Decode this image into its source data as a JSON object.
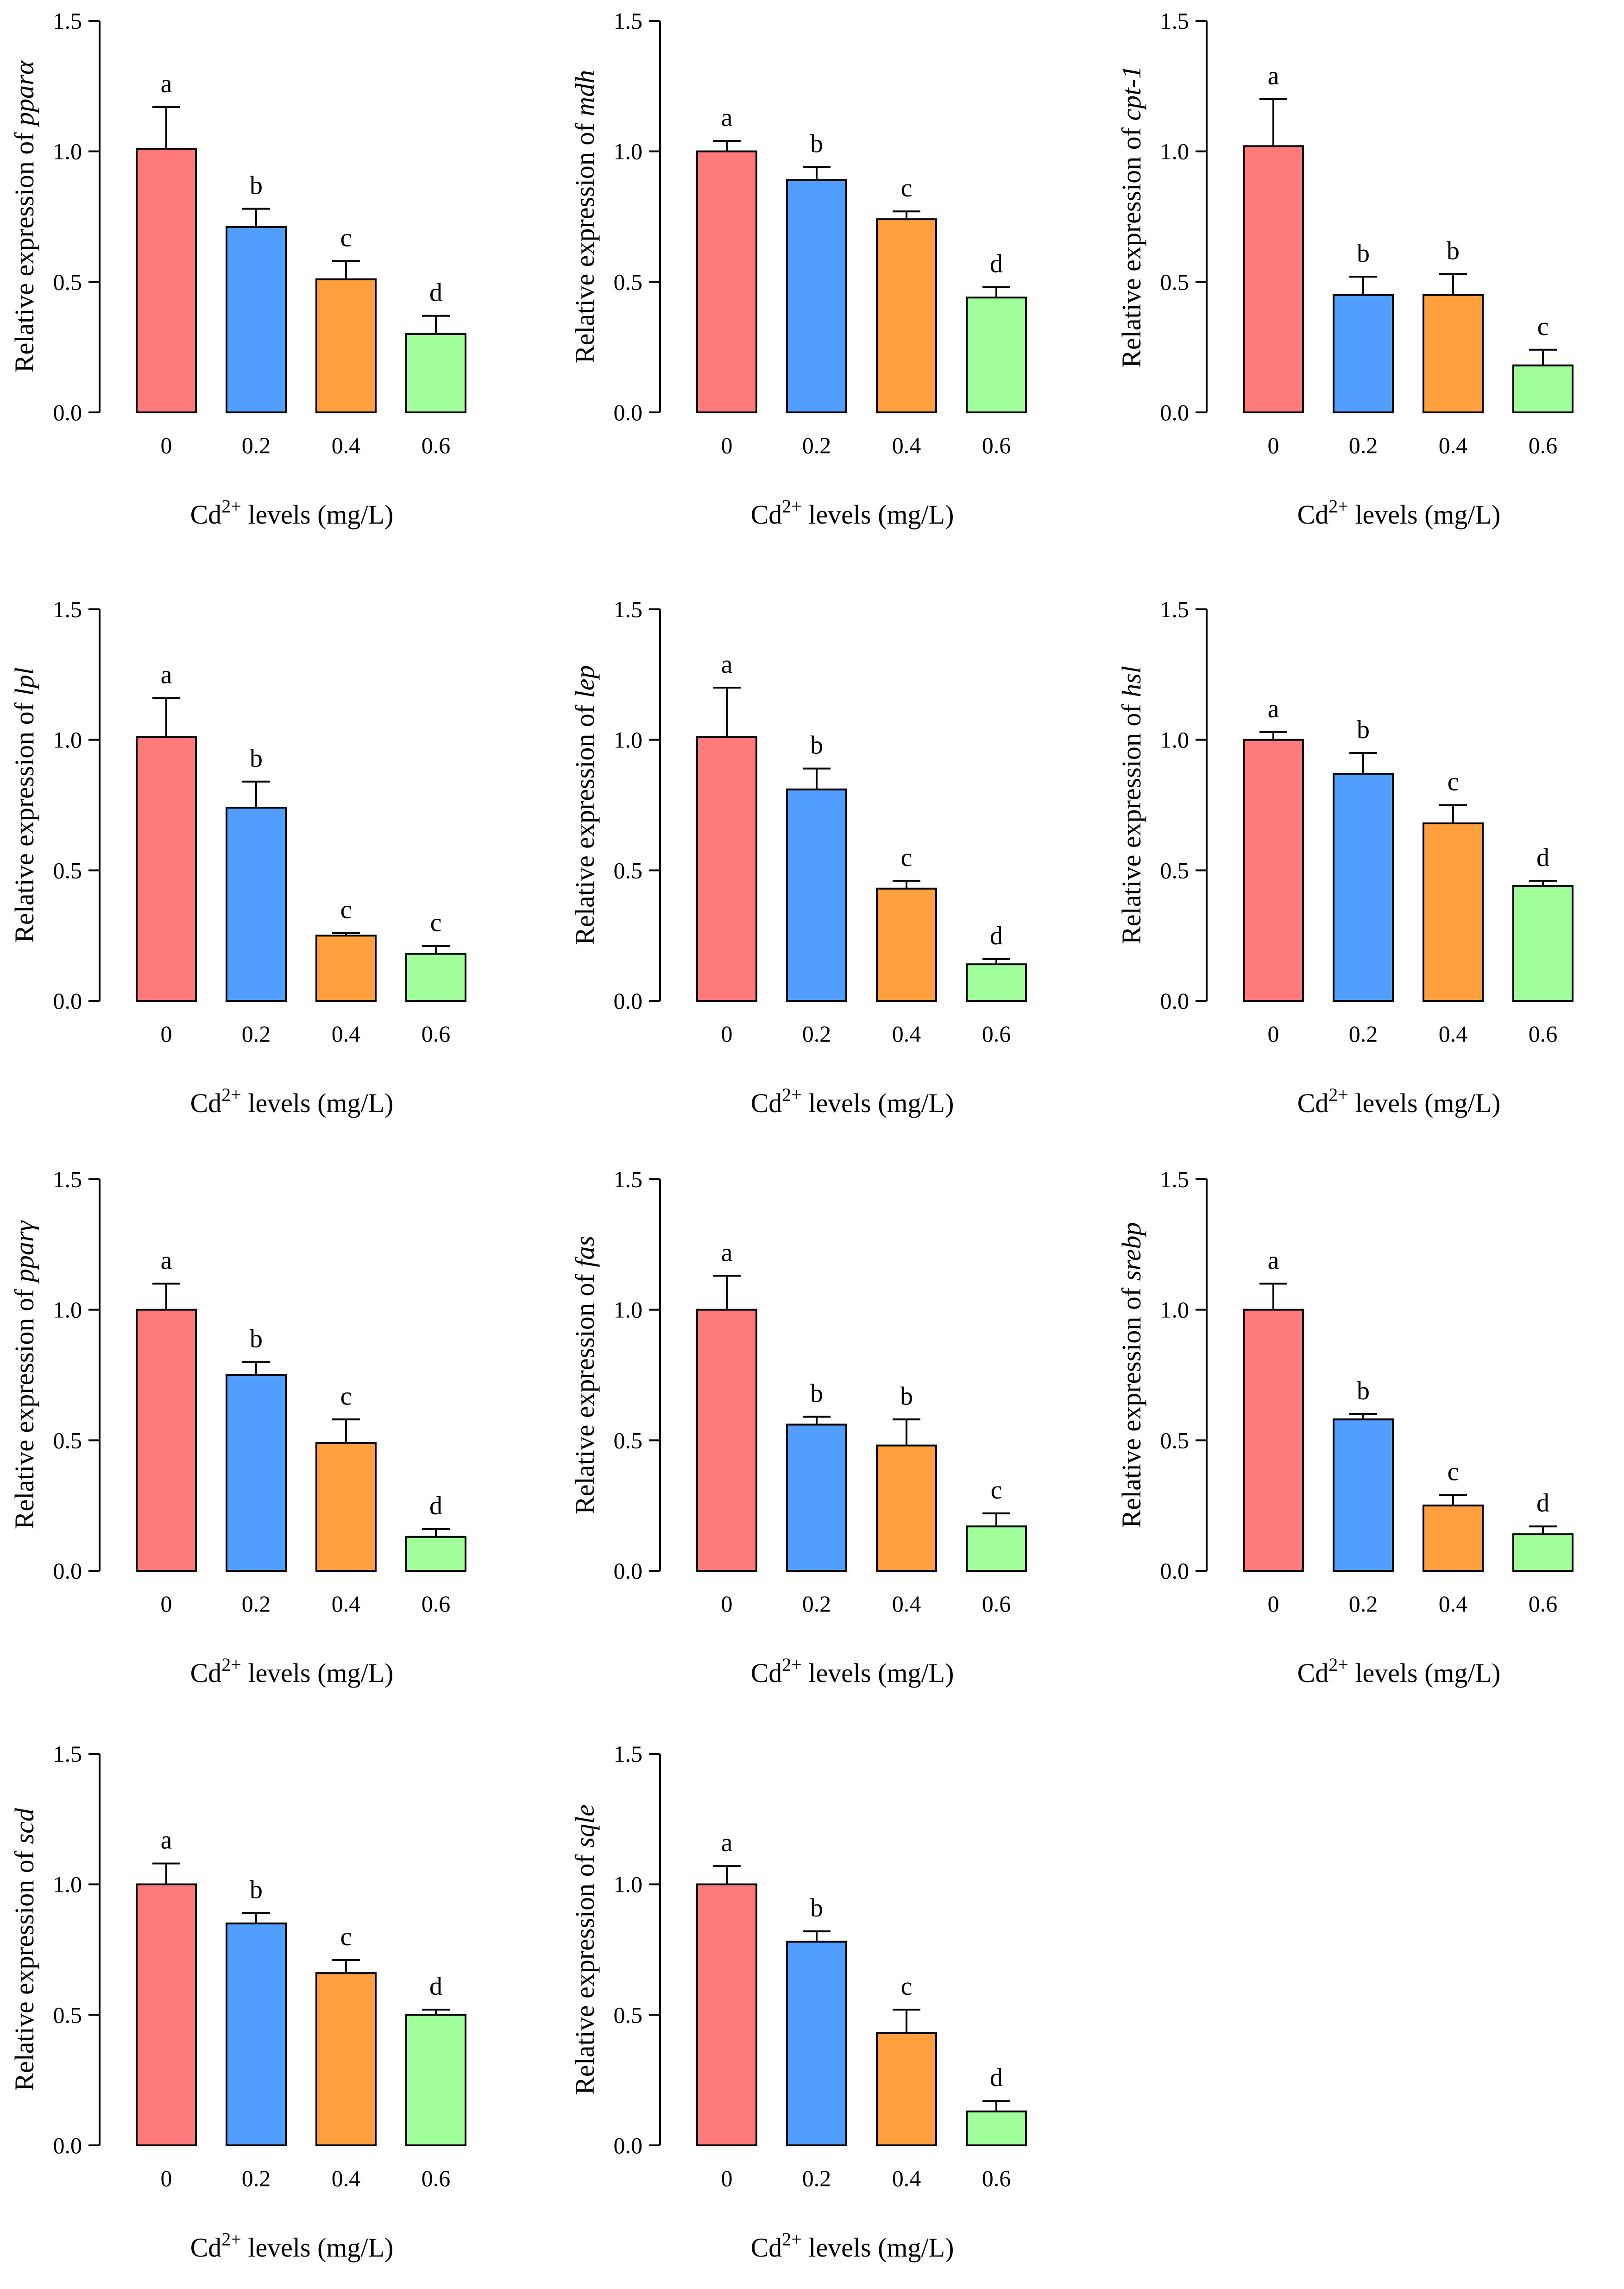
{
  "figure": {
    "x_axis_title": {
      "prefix": "Cd",
      "superscript": "2+",
      "suffix": " levels (mg/L)"
    },
    "y_axis_prefix": "Relative expression of ",
    "colors": [
      "#FF7B7B",
      "#529EFF",
      "#FF9F3E",
      "#A0FF9B"
    ]
  },
  "chart_data": [
    {
      "type": "bar",
      "gene": "pparα",
      "categories": [
        "0",
        "0.2",
        "0.4",
        "0.6"
      ],
      "values": [
        1.01,
        0.71,
        0.51,
        0.3
      ],
      "errors": [
        0.16,
        0.07,
        0.07,
        0.07
      ],
      "letters": [
        "a",
        "b",
        "c",
        "d"
      ],
      "ylim": [
        0,
        1.5
      ],
      "yticks": [
        "0.0",
        "0.5",
        "1.0",
        "1.5"
      ]
    },
    {
      "type": "bar",
      "gene": "mdh",
      "categories": [
        "0",
        "0.2",
        "0.4",
        "0.6"
      ],
      "values": [
        1.0,
        0.89,
        0.74,
        0.44
      ],
      "errors": [
        0.04,
        0.05,
        0.03,
        0.04
      ],
      "letters": [
        "a",
        "b",
        "c",
        "d"
      ],
      "ylim": [
        0,
        1.5
      ],
      "yticks": [
        "0.0",
        "0.5",
        "1.0",
        "1.5"
      ]
    },
    {
      "type": "bar",
      "gene": "cpt-1",
      "categories": [
        "0",
        "0.2",
        "0.4",
        "0.6"
      ],
      "values": [
        1.02,
        0.45,
        0.45,
        0.18
      ],
      "errors": [
        0.18,
        0.07,
        0.08,
        0.06
      ],
      "letters": [
        "a",
        "b",
        "b",
        "c"
      ],
      "ylim": [
        0,
        1.5
      ],
      "yticks": [
        "0.0",
        "0.5",
        "1.0",
        "1.5"
      ]
    },
    {
      "type": "bar",
      "gene": "lpl",
      "categories": [
        "0",
        "0.2",
        "0.4",
        "0.6"
      ],
      "values": [
        1.01,
        0.74,
        0.25,
        0.18
      ],
      "errors": [
        0.15,
        0.1,
        0.01,
        0.03
      ],
      "letters": [
        "a",
        "b",
        "c",
        "c"
      ],
      "ylim": [
        0,
        1.5
      ],
      "yticks": [
        "0.0",
        "0.5",
        "1.0",
        "1.5"
      ]
    },
    {
      "type": "bar",
      "gene": "lep",
      "categories": [
        "0",
        "0.2",
        "0.4",
        "0.6"
      ],
      "values": [
        1.01,
        0.81,
        0.43,
        0.14
      ],
      "errors": [
        0.19,
        0.08,
        0.03,
        0.02
      ],
      "letters": [
        "a",
        "b",
        "c",
        "d"
      ],
      "ylim": [
        0,
        1.5
      ],
      "yticks": [
        "0.0",
        "0.5",
        "1.0",
        "1.5"
      ]
    },
    {
      "type": "bar",
      "gene": "hsl",
      "categories": [
        "0",
        "0.2",
        "0.4",
        "0.6"
      ],
      "values": [
        1.0,
        0.87,
        0.68,
        0.44
      ],
      "errors": [
        0.03,
        0.08,
        0.07,
        0.02
      ],
      "letters": [
        "a",
        "b",
        "c",
        "d"
      ],
      "ylim": [
        0,
        1.5
      ],
      "yticks": [
        "0.0",
        "0.5",
        "1.0",
        "1.5"
      ]
    },
    {
      "type": "bar",
      "gene": "pparγ",
      "categories": [
        "0",
        "0.2",
        "0.4",
        "0.6"
      ],
      "values": [
        1.0,
        0.75,
        0.49,
        0.13
      ],
      "errors": [
        0.1,
        0.05,
        0.09,
        0.03
      ],
      "letters": [
        "a",
        "b",
        "c",
        "d"
      ],
      "ylim": [
        0,
        1.5
      ],
      "yticks": [
        "0.0",
        "0.5",
        "1.0",
        "1.5"
      ]
    },
    {
      "type": "bar",
      "gene": "fas",
      "categories": [
        "0",
        "0.2",
        "0.4",
        "0.6"
      ],
      "values": [
        1.0,
        0.56,
        0.48,
        0.17
      ],
      "errors": [
        0.13,
        0.03,
        0.1,
        0.05
      ],
      "letters": [
        "a",
        "b",
        "b",
        "c"
      ],
      "ylim": [
        0,
        1.5
      ],
      "yticks": [
        "0.0",
        "0.5",
        "1.0",
        "1.5"
      ]
    },
    {
      "type": "bar",
      "gene": "srebp",
      "categories": [
        "0",
        "0.2",
        "0.4",
        "0.6"
      ],
      "values": [
        1.0,
        0.58,
        0.25,
        0.14
      ],
      "errors": [
        0.1,
        0.02,
        0.04,
        0.03
      ],
      "letters": [
        "a",
        "b",
        "c",
        "d"
      ],
      "ylim": [
        0,
        1.5
      ],
      "yticks": [
        "0.0",
        "0.5",
        "1.0",
        "1.5"
      ]
    },
    {
      "type": "bar",
      "gene": "scd",
      "categories": [
        "0",
        "0.2",
        "0.4",
        "0.6"
      ],
      "values": [
        1.0,
        0.85,
        0.66,
        0.5
      ],
      "errors": [
        0.08,
        0.04,
        0.05,
        0.02
      ],
      "letters": [
        "a",
        "b",
        "c",
        "d"
      ],
      "ylim": [
        0,
        1.5
      ],
      "yticks": [
        "0.0",
        "0.5",
        "1.0",
        "1.5"
      ]
    },
    {
      "type": "bar",
      "gene": "sqle",
      "categories": [
        "0",
        "0.2",
        "0.4",
        "0.6"
      ],
      "values": [
        1.0,
        0.78,
        0.43,
        0.13
      ],
      "errors": [
        0.07,
        0.04,
        0.09,
        0.04
      ],
      "letters": [
        "a",
        "b",
        "c",
        "d"
      ],
      "ylim": [
        0,
        1.5
      ],
      "yticks": [
        "0.0",
        "0.5",
        "1.0",
        "1.5"
      ]
    }
  ]
}
